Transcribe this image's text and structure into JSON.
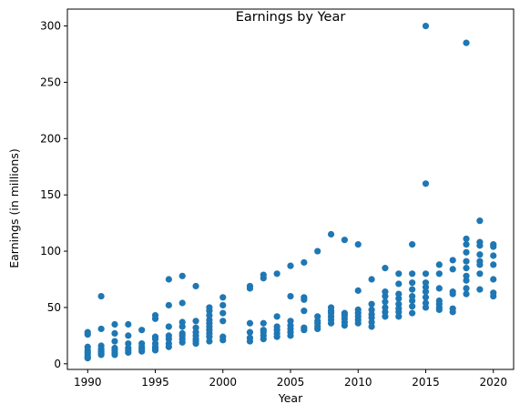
{
  "chart_data": {
    "type": "scatter",
    "title": "Earnings by Year",
    "xlabel": "Year",
    "ylabel": "Earnings (in millions)",
    "xlim": [
      1988.5,
      2021.5
    ],
    "ylim": [
      -5,
      315
    ],
    "x_ticks": [
      1990,
      1995,
      2000,
      2005,
      2010,
      2015,
      2020
    ],
    "y_ticks": [
      0,
      50,
      100,
      150,
      200,
      250,
      300
    ],
    "grid": false,
    "legend": "none",
    "marker_color": "#1f77b4",
    "series": [
      {
        "x": [
          1990,
          1990,
          1990,
          1990,
          1990,
          1990,
          1990,
          1990,
          1991,
          1991,
          1991,
          1991,
          1991,
          1991,
          1991,
          1992,
          1992,
          1992,
          1992,
          1992,
          1992,
          1992,
          1993,
          1993,
          1993,
          1993,
          1993,
          1993,
          1994,
          1994,
          1994,
          1994,
          1994,
          1995,
          1995,
          1995,
          1995,
          1995,
          1995,
          1995,
          1995,
          1996,
          1996,
          1996,
          1996,
          1996,
          1996,
          1996,
          1997,
          1997,
          1997,
          1997,
          1997,
          1997,
          1997,
          1997,
          1998,
          1998,
          1998,
          1998,
          1998,
          1998,
          1998,
          1998,
          1999,
          1999,
          1999,
          1999,
          1999,
          1999,
          1999,
          1999,
          1999,
          1999,
          2000,
          2000,
          2000,
          2000,
          2000,
          2000,
          2002,
          2002,
          2002,
          2002,
          2002,
          2002,
          2003,
          2003,
          2003,
          2003,
          2003,
          2003,
          2003,
          2004,
          2004,
          2004,
          2004,
          2004,
          2004,
          2005,
          2005,
          2005,
          2005,
          2005,
          2005,
          2005,
          2006,
          2006,
          2006,
          2006,
          2006,
          2006,
          2007,
          2007,
          2007,
          2007,
          2007,
          2007,
          2008,
          2008,
          2008,
          2008,
          2008,
          2008,
          2008,
          2009,
          2009,
          2009,
          2009,
          2009,
          2009,
          2010,
          2010,
          2010,
          2010,
          2010,
          2010,
          2010,
          2011,
          2011,
          2011,
          2011,
          2011,
          2011,
          2011,
          2012,
          2012,
          2012,
          2012,
          2012,
          2012,
          2012,
          2013,
          2013,
          2013,
          2013,
          2013,
          2013,
          2013,
          2013,
          2014,
          2014,
          2014,
          2014,
          2014,
          2014,
          2014,
          2014,
          2015,
          2015,
          2015,
          2015,
          2015,
          2015,
          2015,
          2015,
          2015,
          2016,
          2016,
          2016,
          2016,
          2016,
          2016,
          2016,
          2017,
          2017,
          2017,
          2017,
          2017,
          2017,
          2018,
          2018,
          2018,
          2018,
          2018,
          2018,
          2018,
          2018,
          2018,
          2018,
          2019,
          2019,
          2019,
          2019,
          2019,
          2019,
          2019,
          2019,
          2020,
          2020,
          2020,
          2020,
          2020,
          2020,
          2020
        ],
        "y": [
          28,
          26,
          15,
          12,
          10,
          8,
          6,
          5,
          60,
          31,
          16,
          13,
          11,
          9,
          8,
          35,
          27,
          20,
          14,
          12,
          10,
          8,
          35,
          25,
          18,
          14,
          12,
          10,
          30,
          18,
          15,
          13,
          11,
          43,
          40,
          24,
          22,
          18,
          15,
          13,
          12,
          75,
          52,
          33,
          25,
          22,
          18,
          15,
          78,
          54,
          37,
          33,
          27,
          25,
          22,
          19,
          69,
          38,
          32,
          28,
          25,
          22,
          20,
          18,
          50,
          47,
          43,
          39,
          36,
          33,
          30,
          27,
          24,
          20,
          59,
          52,
          45,
          38,
          24,
          21,
          69,
          67,
          36,
          28,
          23,
          20,
          79,
          76,
          36,
          30,
          28,
          25,
          22,
          80,
          42,
          33,
          30,
          27,
          24,
          87,
          60,
          38,
          34,
          31,
          28,
          25,
          90,
          59,
          57,
          47,
          32,
          30,
          100,
          42,
          38,
          36,
          33,
          31,
          115,
          50,
          47,
          45,
          42,
          39,
          36,
          110,
          45,
          43,
          40,
          37,
          34,
          106,
          65,
          48,
          45,
          42,
          39,
          36,
          75,
          53,
          48,
          44,
          41,
          37,
          33,
          85,
          64,
          60,
          55,
          50,
          46,
          42,
          80,
          71,
          62,
          58,
          53,
          49,
          46,
          42,
          106,
          80,
          72,
          66,
          60,
          56,
          51,
          45,
          300,
          160,
          80,
          72,
          68,
          64,
          59,
          54,
          50,
          88,
          80,
          67,
          56,
          53,
          50,
          48,
          92,
          84,
          64,
          62,
          49,
          46,
          285,
          111,
          106,
          99,
          91,
          85,
          78,
          74,
          67,
          62,
          127,
          108,
          105,
          97,
          91,
          88,
          80,
          66,
          106,
          104,
          96,
          88,
          75,
          63,
          60
        ]
      }
    ]
  }
}
